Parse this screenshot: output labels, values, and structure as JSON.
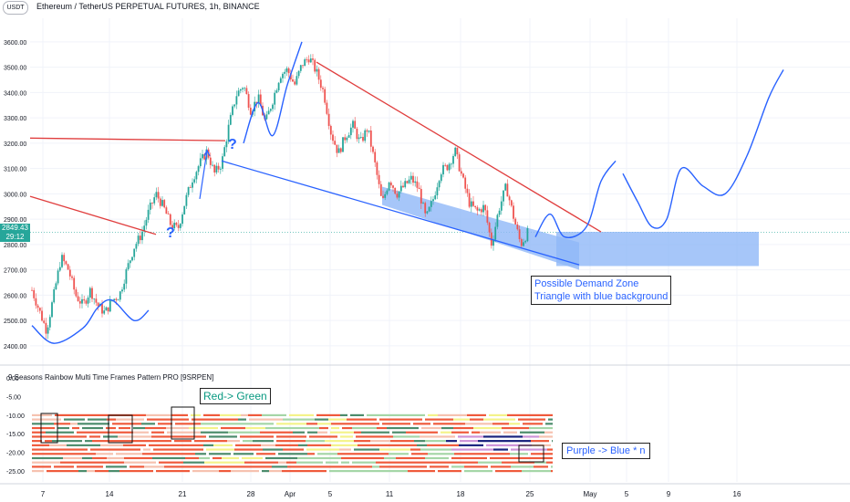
{
  "header": {
    "symbol_title": "Ethereum / TetherUS PERPETUAL FUTURES, 1h, BINANCE",
    "currency_badge": "USDT"
  },
  "price_badge": {
    "price": "2849.43",
    "countdown": "29:12"
  },
  "indicator": {
    "title": "9 Seasons Rainbow Multi Time Frames Pattern PRO [9SRPEN]"
  },
  "notes": {
    "demand_line1": "Possible Demand Zone",
    "demand_line2": "Triangle with blue background",
    "red_green": "Red-> Green",
    "purple_blue": "Purple -> Blue  * n"
  },
  "annotations": {
    "question_mark": "?"
  },
  "colors": {
    "bull": "#26a69a",
    "bear": "#ef5350",
    "trend_red": "#e03e3e",
    "trend_blue": "#2962ff",
    "projection": "#2962ff",
    "zone": "#90b8f8",
    "grid": "#f0f3fa",
    "band_red": "#ef5a3c",
    "band_green": "#a5d6a7",
    "band_dgreen": "#4c8c6c",
    "band_navy": "#1a237e",
    "band_yellow": "#f4f38a",
    "band_purple": "#ce93d8",
    "band_light": "#f6c2b0"
  },
  "chart_data": [
    {
      "type": "candlestick",
      "title": "Ethereum / TetherUS PERPETUAL FUTURES, 1h, BINANCE",
      "xlabel": "",
      "ylabel": "",
      "x_ticks": [
        "7",
        "14",
        "21",
        "28",
        "Apr",
        "5",
        "11",
        "18",
        "25",
        "May",
        "5",
        "9",
        "16"
      ],
      "y_ticks": [
        3600,
        3500,
        3400,
        3300,
        3200,
        3100,
        3000,
        2900,
        2800,
        2700,
        2600,
        2500,
        2400
      ],
      "ylim": [
        2360,
        3650
      ],
      "price_path": [
        {
          "t": 0,
          "p": 2620
        },
        {
          "t": 2,
          "p": 2540
        },
        {
          "t": 4,
          "p": 2460
        },
        {
          "t": 6,
          "p": 2600
        },
        {
          "t": 8,
          "p": 2750
        },
        {
          "t": 10,
          "p": 2700
        },
        {
          "t": 12,
          "p": 2600
        },
        {
          "t": 14,
          "p": 2560
        },
        {
          "t": 16,
          "p": 2620
        },
        {
          "t": 18,
          "p": 2560
        },
        {
          "t": 20,
          "p": 2530
        },
        {
          "t": 22,
          "p": 2580
        },
        {
          "t": 24,
          "p": 2600
        },
        {
          "t": 26,
          "p": 2700
        },
        {
          "t": 28,
          "p": 2790
        },
        {
          "t": 30,
          "p": 2840
        },
        {
          "t": 32,
          "p": 2930
        },
        {
          "t": 34,
          "p": 3000
        },
        {
          "t": 36,
          "p": 2950
        },
        {
          "t": 38,
          "p": 2880
        },
        {
          "t": 40,
          "p": 2860
        },
        {
          "t": 42,
          "p": 2970
        },
        {
          "t": 44,
          "p": 3060
        },
        {
          "t": 46,
          "p": 3120
        },
        {
          "t": 48,
          "p": 3170
        },
        {
          "t": 50,
          "p": 3080
        },
        {
          "t": 52,
          "p": 3120
        },
        {
          "t": 54,
          "p": 3270
        },
        {
          "t": 56,
          "p": 3390
        },
        {
          "t": 58,
          "p": 3430
        },
        {
          "t": 60,
          "p": 3330
        },
        {
          "t": 62,
          "p": 3380
        },
        {
          "t": 64,
          "p": 3280
        },
        {
          "t": 66,
          "p": 3370
        },
        {
          "t": 68,
          "p": 3470
        },
        {
          "t": 70,
          "p": 3490
        },
        {
          "t": 72,
          "p": 3430
        },
        {
          "t": 74,
          "p": 3510
        },
        {
          "t": 76,
          "p": 3540
        },
        {
          "t": 78,
          "p": 3480
        },
        {
          "t": 80,
          "p": 3400
        },
        {
          "t": 82,
          "p": 3240
        },
        {
          "t": 84,
          "p": 3160
        },
        {
          "t": 86,
          "p": 3230
        },
        {
          "t": 88,
          "p": 3270
        },
        {
          "t": 90,
          "p": 3200
        },
        {
          "t": 92,
          "p": 3260
        },
        {
          "t": 94,
          "p": 3120
        },
        {
          "t": 96,
          "p": 2960
        },
        {
          "t": 98,
          "p": 3060
        },
        {
          "t": 100,
          "p": 3000
        },
        {
          "t": 102,
          "p": 3030
        },
        {
          "t": 104,
          "p": 3060
        },
        {
          "t": 106,
          "p": 3020
        },
        {
          "t": 108,
          "p": 2900
        },
        {
          "t": 110,
          "p": 2980
        },
        {
          "t": 112,
          "p": 3090
        },
        {
          "t": 114,
          "p": 3110
        },
        {
          "t": 116,
          "p": 3170
        },
        {
          "t": 118,
          "p": 3060
        },
        {
          "t": 120,
          "p": 2960
        },
        {
          "t": 122,
          "p": 2930
        },
        {
          "t": 124,
          "p": 2950
        },
        {
          "t": 126,
          "p": 2800
        },
        {
          "t": 128,
          "p": 2940
        },
        {
          "t": 130,
          "p": 3030
        },
        {
          "t": 132,
          "p": 2910
        },
        {
          "t": 134,
          "p": 2800
        },
        {
          "t": 136,
          "p": 2850
        }
      ],
      "trendlines": [
        {
          "color": "trend_red",
          "from": {
            "t": -8,
            "p": 2990
          },
          "to": {
            "t": 34,
            "p": 2840
          }
        },
        {
          "color": "trend_red",
          "from": {
            "t": -8,
            "p": 3220
          },
          "to": {
            "t": 53,
            "p": 3210
          }
        },
        {
          "color": "trend_red",
          "from": {
            "t": 78,
            "p": 3520
          },
          "to": {
            "t": 156,
            "p": 2850
          }
        },
        {
          "color": "trend_blue",
          "from": {
            "t": 52,
            "p": 3130
          },
          "to": {
            "t": 150,
            "p": 2720
          }
        }
      ],
      "demand_zones": [
        {
          "from": {
            "t": 96,
            "p": 2985
          },
          "to": {
            "t": 150,
            "p": 2765
          },
          "kind": "parallelogram"
        },
        {
          "t1": 150,
          "t2": 205,
          "p_low": 2715,
          "p_high": 2850,
          "kind": "rectangle"
        }
      ],
      "projections": [
        {
          "points": [
            {
              "t": 0,
              "p": 2480
            },
            {
              "t": 6,
              "p": 2410
            },
            {
              "t": 14,
              "p": 2470
            },
            {
              "t": 18,
              "p": 2550
            },
            {
              "t": 22,
              "p": 2580
            },
            {
              "t": 28,
              "p": 2500
            },
            {
              "t": 32,
              "p": 2540
            }
          ]
        },
        {
          "points": [
            {
              "t": 58,
              "p": 3200
            },
            {
              "t": 62,
              "p": 3360
            },
            {
              "t": 66,
              "p": 3230
            },
            {
              "t": 70,
              "p": 3430
            },
            {
              "t": 74,
              "p": 3600
            }
          ]
        },
        {
          "points": [
            {
              "t": 138,
              "p": 2830
            },
            {
              "t": 142,
              "p": 2920
            },
            {
              "t": 146,
              "p": 2830
            },
            {
              "t": 152,
              "p": 2870
            },
            {
              "t": 156,
              "p": 3050
            },
            {
              "t": 160,
              "p": 3130
            }
          ]
        },
        {
          "points": [
            {
              "t": 162,
              "p": 3080
            },
            {
              "t": 166,
              "p": 2970
            },
            {
              "t": 170,
              "p": 2870
            },
            {
              "t": 174,
              "p": 2900
            },
            {
              "t": 178,
              "p": 3100
            },
            {
              "t": 184,
              "p": 3030
            },
            {
              "t": 190,
              "p": 3000
            },
            {
              "t": 196,
              "p": 3150
            },
            {
              "t": 202,
              "p": 3380
            },
            {
              "t": 206,
              "p": 3490
            }
          ]
        }
      ],
      "question_marks": [
        {
          "t": 36,
          "p": 2850
        },
        {
          "t": 53,
          "p": 3200
        }
      ]
    },
    {
      "type": "heatmap",
      "title": "9 Seasons Rainbow Multi Time Frames Pattern PRO [9SRPEN]",
      "y_ticks": [
        "0.00",
        "-5.00",
        "-10.00",
        "-15.00",
        "-20.00",
        "-25.00"
      ],
      "ylim": [
        -26,
        1
      ],
      "rows": 14,
      "note": "Horizontal colored bands from -10 to -25, dominated by red/orange with green, yellow, navy and purple segments."
    }
  ]
}
